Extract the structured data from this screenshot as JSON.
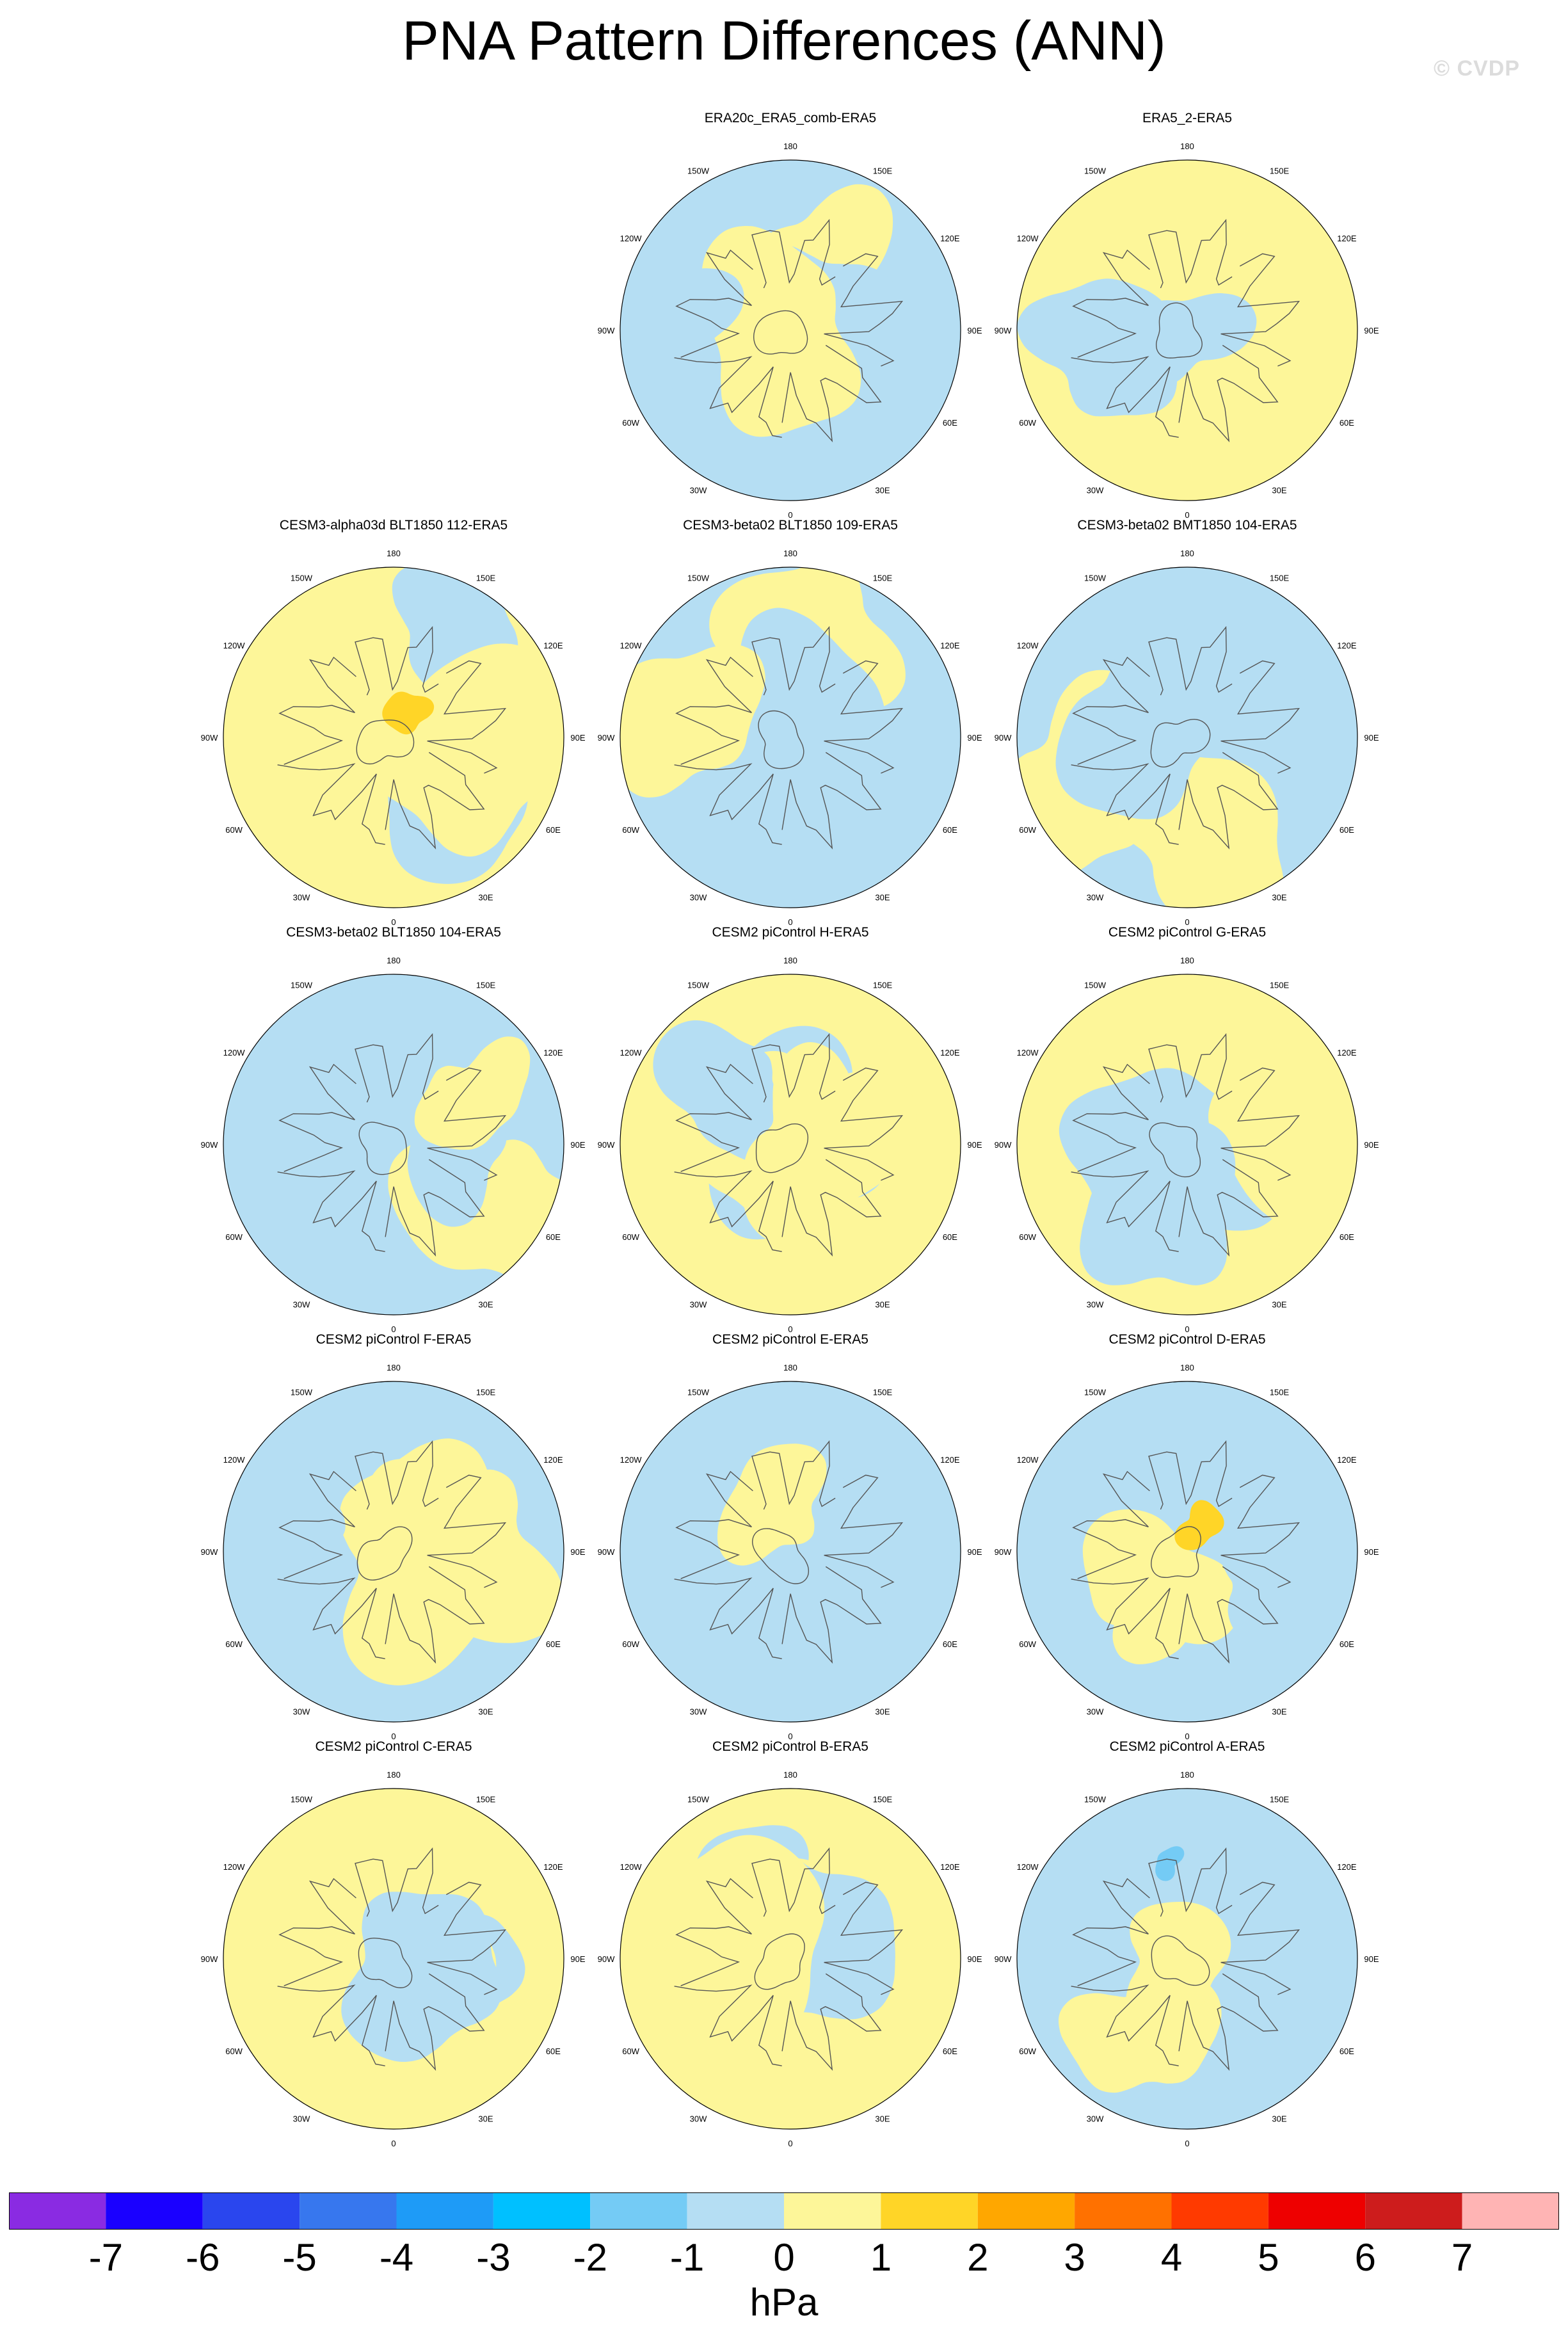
{
  "title": "PNA Pattern Differences (ANN)",
  "watermark": "© CVDP",
  "tick_labels": [
    "180",
    "150E",
    "120E",
    "90E",
    "60E",
    "30E",
    "0",
    "30W",
    "60W",
    "90W",
    "120W",
    "150W"
  ],
  "panels": [
    {
      "title": "ERA20c_ERA5_comb-ERA5",
      "pattern": 0
    },
    {
      "title": "ERA5_2-ERA5",
      "pattern": 1
    },
    {
      "title": "CESM3-alpha03d BLT1850 112-ERA5",
      "pattern": 2,
      "max_patch": true
    },
    {
      "title": "CESM3-beta02 BLT1850 109-ERA5",
      "pattern": 3
    },
    {
      "title": "CESM3-beta02 BMT1850 104-ERA5",
      "pattern": 4
    },
    {
      "title": "CESM3-beta02 BLT1850 104-ERA5",
      "pattern": 5
    },
    {
      "title": "CESM2 piControl H-ERA5",
      "pattern": 6
    },
    {
      "title": "CESM2 piControl G-ERA5",
      "pattern": 7
    },
    {
      "title": "CESM2 piControl F-ERA5",
      "pattern": 8
    },
    {
      "title": "CESM2 piControl E-ERA5",
      "pattern": 9
    },
    {
      "title": "CESM2 piControl D-ERA5",
      "pattern": 10,
      "max_patch": true
    },
    {
      "title": "CESM2 piControl C-ERA5",
      "pattern": 11
    },
    {
      "title": "CESM2 piControl B-ERA5",
      "pattern": 12
    },
    {
      "title": "CESM2 piControl A-ERA5",
      "pattern": 13,
      "min_patch": true
    }
  ],
  "colorbar": {
    "colors": [
      "#8a2be2",
      "#1a00ff",
      "#2a46ee",
      "#3777ee",
      "#1e9bf7",
      "#00c0ff",
      "#74cbf5",
      "#b5def3",
      "#fdf699",
      "#ffd527",
      "#ffa700",
      "#ff7100",
      "#ff3a00",
      "#ee0000",
      "#cd1c1c",
      "#ffb4b4"
    ],
    "labels": [
      "-7",
      "-6",
      "-5",
      "-4",
      "-3",
      "-2",
      "-1",
      "0",
      "1",
      "2",
      "3",
      "4",
      "5",
      "6",
      "7"
    ],
    "unit": "hPa",
    "field_negative": "#b5def3",
    "field_positive": "#fdf699",
    "field_strong_positive": "#ffd527",
    "field_strong_negative": "#74cbf5"
  }
}
